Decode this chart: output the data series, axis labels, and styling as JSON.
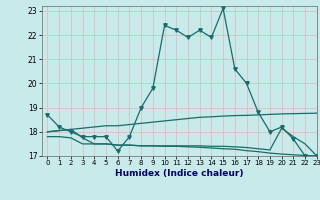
{
  "title": "",
  "xlabel": "Humidex (Indice chaleur)",
  "ylabel": "",
  "bg_color": "#c8eaea",
  "grid_color": "#d8b8b8",
  "line_color": "#1a6b6b",
  "xlim": [
    -0.5,
    23
  ],
  "ylim": [
    17,
    23.2
  ],
  "yticks": [
    17,
    18,
    19,
    20,
    21,
    22,
    23
  ],
  "xticks": [
    0,
    1,
    2,
    3,
    4,
    5,
    6,
    7,
    8,
    9,
    10,
    11,
    12,
    13,
    14,
    15,
    16,
    17,
    18,
    19,
    20,
    21,
    22,
    23
  ],
  "line1_x": [
    0,
    1,
    2,
    3,
    4,
    5,
    6,
    7,
    8,
    9,
    10,
    11,
    12,
    13,
    14,
    15,
    16,
    17,
    18,
    19,
    20,
    21,
    22,
    23
  ],
  "line1_y": [
    18.7,
    18.2,
    18.0,
    17.8,
    17.8,
    17.8,
    17.2,
    17.8,
    19.0,
    19.8,
    22.4,
    22.2,
    21.9,
    22.2,
    21.9,
    23.1,
    20.6,
    20.0,
    18.8,
    18.0,
    18.2,
    17.7,
    17.0,
    17.0
  ],
  "line2_x": [
    0,
    1,
    2,
    3,
    4,
    5,
    6,
    7,
    8,
    9,
    10,
    11,
    12,
    13,
    14,
    15,
    16,
    17,
    18,
    19,
    20,
    21,
    22,
    23
  ],
  "line2_y": [
    18.0,
    18.05,
    18.1,
    18.15,
    18.2,
    18.25,
    18.25,
    18.3,
    18.35,
    18.4,
    18.45,
    18.5,
    18.55,
    18.6,
    18.62,
    18.65,
    18.67,
    18.68,
    18.7,
    18.72,
    18.74,
    18.75,
    18.76,
    18.77
  ],
  "line3_x": [
    0,
    1,
    2,
    3,
    4,
    5,
    6,
    7,
    8,
    9,
    10,
    11,
    12,
    13,
    14,
    15,
    16,
    17,
    18,
    19,
    20,
    21,
    22,
    23
  ],
  "line3_y": [
    17.8,
    17.8,
    17.75,
    17.5,
    17.5,
    17.5,
    17.45,
    17.45,
    17.42,
    17.42,
    17.4,
    17.4,
    17.38,
    17.36,
    17.33,
    17.3,
    17.28,
    17.22,
    17.18,
    17.12,
    17.08,
    17.05,
    17.02,
    17.0
  ],
  "line4_x": [
    0,
    1,
    2,
    3,
    4,
    5,
    6,
    7,
    8,
    9,
    10,
    11,
    12,
    13,
    14,
    15,
    16,
    17,
    18,
    19,
    20,
    21,
    22,
    23
  ],
  "line4_y": [
    18.0,
    18.05,
    18.1,
    17.75,
    17.5,
    17.5,
    17.45,
    17.45,
    17.42,
    17.42,
    17.42,
    17.42,
    17.42,
    17.42,
    17.4,
    17.4,
    17.38,
    17.35,
    17.3,
    17.25,
    18.15,
    17.8,
    17.5,
    17.0
  ]
}
